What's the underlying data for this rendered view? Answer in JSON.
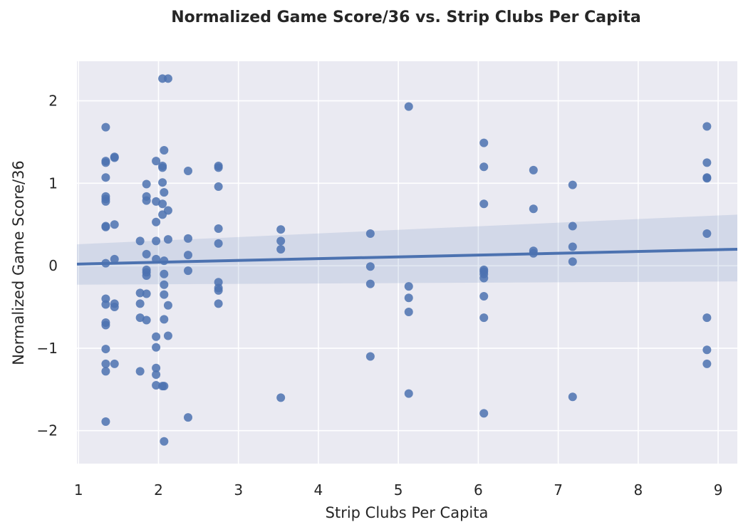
{
  "chart_data": {
    "type": "scatter",
    "title": "Normalized Game Score/36 vs. Strip Clubs Per Capita",
    "xlabel": "Strip Clubs Per Capita",
    "ylabel": "Normalized Game Score/36",
    "xlim": [
      0.98,
      9.24
    ],
    "ylim": [
      -2.4,
      2.48
    ],
    "xticks": [
      1,
      2,
      3,
      4,
      5,
      6,
      7,
      8,
      9
    ],
    "xtick_labels": [
      "1",
      "2",
      "3",
      "4",
      "5",
      "6",
      "7",
      "8",
      "9"
    ],
    "yticks": [
      -2,
      -1,
      0,
      1,
      2
    ],
    "ytick_labels": [
      "−2",
      "−1",
      "0",
      "1",
      "2"
    ],
    "grid": true,
    "legend": "none",
    "colors": {
      "background": "#eaeaf2",
      "grid": "#ffffff",
      "points": "#4c72b0",
      "band": "#4c72b0"
    },
    "regression": {
      "x": [
        0.98,
        9.24
      ],
      "y": [
        0.02,
        0.2
      ],
      "ci_upper": [
        0.26,
        0.62
      ],
      "ci_lower": [
        -0.23,
        -0.19
      ]
    },
    "points": [
      [
        1.34,
        1.68
      ],
      [
        1.34,
        1.27
      ],
      [
        1.34,
        1.25
      ],
      [
        1.34,
        1.07
      ],
      [
        1.34,
        0.84
      ],
      [
        1.34,
        0.81
      ],
      [
        1.34,
        0.78
      ],
      [
        1.34,
        0.48
      ],
      [
        1.34,
        0.47
      ],
      [
        1.34,
        0.03
      ],
      [
        1.34,
        -0.4
      ],
      [
        1.34,
        -0.47
      ],
      [
        1.34,
        -0.69
      ],
      [
        1.34,
        -0.72
      ],
      [
        1.34,
        -1.01
      ],
      [
        1.34,
        -1.19
      ],
      [
        1.34,
        -1.28
      ],
      [
        1.34,
        -1.89
      ],
      [
        1.45,
        1.32
      ],
      [
        1.45,
        1.31
      ],
      [
        1.45,
        0.5
      ],
      [
        1.45,
        0.08
      ],
      [
        1.45,
        -0.46
      ],
      [
        1.45,
        -0.5
      ],
      [
        1.45,
        -1.19
      ],
      [
        1.77,
        0.3
      ],
      [
        1.77,
        -0.33
      ],
      [
        1.77,
        -0.46
      ],
      [
        1.77,
        -0.63
      ],
      [
        1.77,
        -1.28
      ],
      [
        1.85,
        0.99
      ],
      [
        1.85,
        0.84
      ],
      [
        1.85,
        0.79
      ],
      [
        1.85,
        0.14
      ],
      [
        1.85,
        -0.05
      ],
      [
        1.85,
        -0.08
      ],
      [
        1.85,
        -0.12
      ],
      [
        1.85,
        -0.34
      ],
      [
        1.85,
        -0.66
      ],
      [
        1.97,
        1.27
      ],
      [
        1.97,
        0.78
      ],
      [
        1.97,
        0.53
      ],
      [
        1.97,
        0.3
      ],
      [
        1.97,
        0.08
      ],
      [
        1.97,
        -0.86
      ],
      [
        1.97,
        -0.99
      ],
      [
        1.97,
        -1.24
      ],
      [
        1.97,
        -1.32
      ],
      [
        1.97,
        -1.45
      ],
      [
        2.05,
        2.27
      ],
      [
        2.05,
        1.21
      ],
      [
        2.05,
        1.19
      ],
      [
        2.05,
        1.01
      ],
      [
        2.05,
        0.75
      ],
      [
        2.05,
        0.62
      ],
      [
        2.05,
        -1.46
      ],
      [
        2.07,
        1.4
      ],
      [
        2.07,
        0.89
      ],
      [
        2.07,
        0.06
      ],
      [
        2.07,
        -0.1
      ],
      [
        2.07,
        -0.23
      ],
      [
        2.07,
        -0.35
      ],
      [
        2.07,
        -0.65
      ],
      [
        2.07,
        -1.46
      ],
      [
        2.07,
        -2.13
      ],
      [
        2.12,
        2.27
      ],
      [
        2.12,
        0.67
      ],
      [
        2.12,
        0.32
      ],
      [
        2.12,
        -0.48
      ],
      [
        2.12,
        -0.85
      ],
      [
        2.37,
        1.15
      ],
      [
        2.37,
        0.33
      ],
      [
        2.37,
        0.13
      ],
      [
        2.37,
        -0.06
      ],
      [
        2.37,
        -1.84
      ],
      [
        2.75,
        1.21
      ],
      [
        2.75,
        1.19
      ],
      [
        2.75,
        0.96
      ],
      [
        2.75,
        0.45
      ],
      [
        2.75,
        0.27
      ],
      [
        2.75,
        -0.2
      ],
      [
        2.75,
        -0.27
      ],
      [
        2.75,
        -0.3
      ],
      [
        2.75,
        -0.46
      ],
      [
        3.53,
        0.44
      ],
      [
        3.53,
        0.3
      ],
      [
        3.53,
        0.2
      ],
      [
        3.53,
        -1.6
      ],
      [
        4.65,
        0.39
      ],
      [
        4.65,
        -0.01
      ],
      [
        4.65,
        -0.22
      ],
      [
        4.65,
        -1.1
      ],
      [
        5.13,
        1.93
      ],
      [
        5.13,
        -0.25
      ],
      [
        5.13,
        -0.39
      ],
      [
        5.13,
        -0.56
      ],
      [
        5.13,
        -1.55
      ],
      [
        6.07,
        1.49
      ],
      [
        6.07,
        1.2
      ],
      [
        6.07,
        0.75
      ],
      [
        6.07,
        -0.05
      ],
      [
        6.07,
        -0.07
      ],
      [
        6.07,
        -0.1
      ],
      [
        6.07,
        -0.15
      ],
      [
        6.07,
        -0.37
      ],
      [
        6.07,
        -0.63
      ],
      [
        6.07,
        -1.79
      ],
      [
        6.69,
        1.16
      ],
      [
        6.69,
        0.69
      ],
      [
        6.69,
        0.18
      ],
      [
        6.69,
        0.15
      ],
      [
        7.18,
        0.98
      ],
      [
        7.18,
        0.48
      ],
      [
        7.18,
        0.23
      ],
      [
        7.18,
        0.05
      ],
      [
        7.18,
        -1.59
      ],
      [
        8.86,
        1.69
      ],
      [
        8.86,
        1.25
      ],
      [
        8.86,
        1.07
      ],
      [
        8.86,
        1.06
      ],
      [
        8.86,
        0.39
      ],
      [
        8.86,
        -0.63
      ],
      [
        8.86,
        -1.02
      ],
      [
        8.86,
        -1.19
      ]
    ]
  }
}
